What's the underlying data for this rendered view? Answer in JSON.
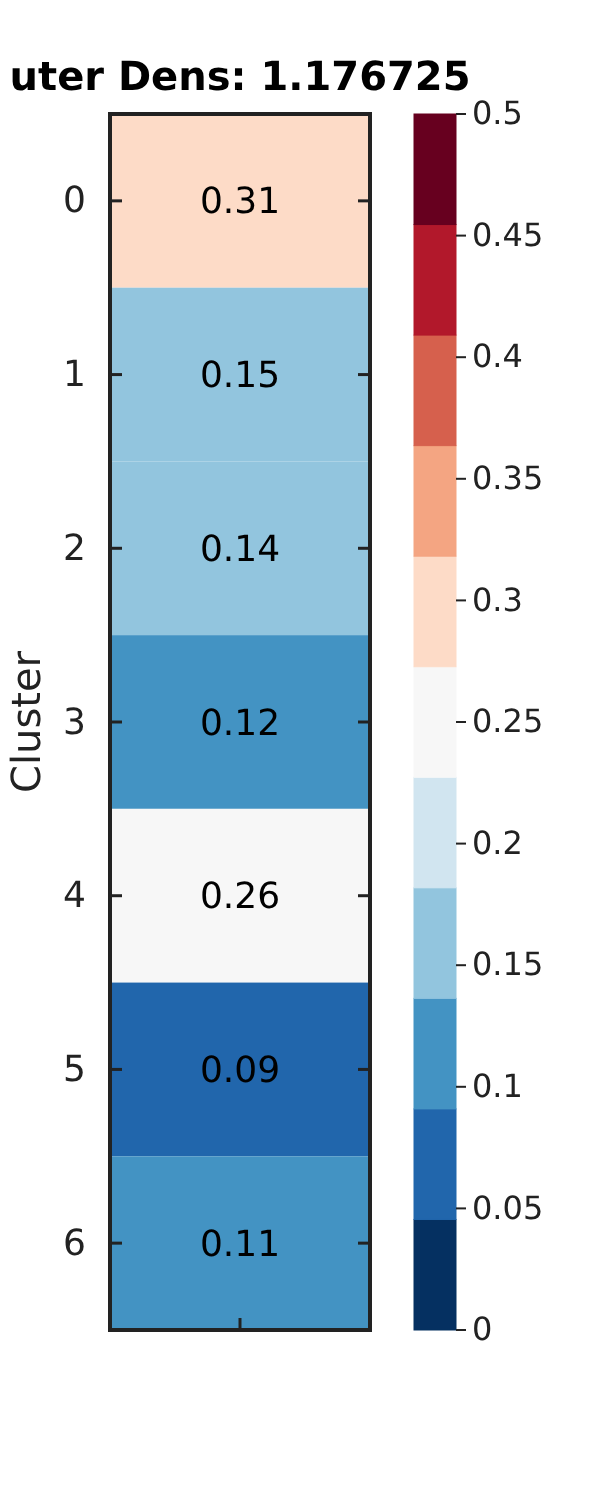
{
  "chart_data": {
    "type": "heatmap",
    "title": "uter Dens: 1.176725",
    "ylabel": "Cluster",
    "categories": [
      null
    ],
    "y_categories": [
      "0",
      "1",
      "2",
      "3",
      "4",
      "5",
      "6"
    ],
    "cells": [
      [
        0.31
      ],
      [
        0.15
      ],
      [
        0.14
      ],
      [
        0.12
      ],
      [
        0.26
      ],
      [
        0.09
      ],
      [
        0.11
      ]
    ],
    "data_labels": true,
    "colors": [
      "#053061",
      "#2166ac",
      "#4393c3",
      "#92c5de",
      "#d1e5f0",
      "#f7f7f7",
      "#fddbc7",
      "#f4a582",
      "#d6604d",
      "#b2182b",
      "#67001f"
    ],
    "clim": [
      0,
      0.5
    ],
    "cticks": [
      0,
      0.05,
      0.1,
      0.15,
      0.2,
      0.25,
      0.3,
      0.35,
      0.4,
      0.45,
      0.5
    ]
  }
}
